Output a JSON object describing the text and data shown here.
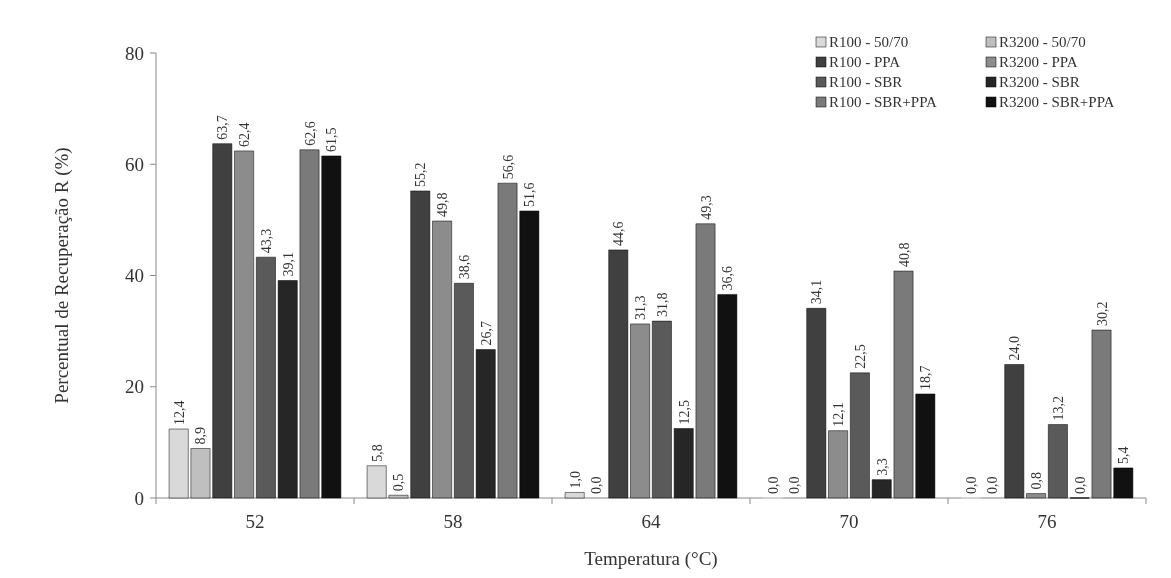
{
  "chart_data": {
    "type": "bar",
    "xlabel": "Temperatura (°C)",
    "ylabel": "Percentual de Recuperação R (%)",
    "categories": [
      "52",
      "58",
      "64",
      "70",
      "76"
    ],
    "ylim": [
      0,
      80
    ],
    "yticks": [
      0,
      20,
      40,
      60,
      80
    ],
    "grid": false,
    "legend": "top right",
    "series": [
      {
        "name": "R100 - 50/70",
        "color": "#d9d9d9",
        "values": [
          12.4,
          5.8,
          1.0,
          0.0,
          0.0
        ],
        "value_labels": [
          "12,4",
          "5,8",
          "1,0",
          "0,0",
          "0,0"
        ]
      },
      {
        "name": "R3200 - 50/70",
        "color": "#bfbfbf",
        "values": [
          8.9,
          0.5,
          0.0,
          0.0,
          0.0
        ],
        "value_labels": [
          "8,9",
          "0,5",
          "0,0",
          "0,0",
          "0,0"
        ]
      },
      {
        "name": "R100 - PPA",
        "color": "#404040",
        "values": [
          63.7,
          55.2,
          44.6,
          34.1,
          24.0
        ],
        "value_labels": [
          "63,7",
          "55,2",
          "44,6",
          "34,1",
          "24,0"
        ]
      },
      {
        "name": "R3200 - PPA",
        "color": "#8c8c8c",
        "values": [
          62.4,
          49.8,
          31.3,
          12.1,
          0.8
        ],
        "value_labels": [
          "62,4",
          "49,8",
          "31,3",
          "12,1",
          "0,8"
        ]
      },
      {
        "name": "R100 - SBR",
        "color": "#5a5a5a",
        "values": [
          43.3,
          38.6,
          31.8,
          22.5,
          13.2
        ],
        "value_labels": [
          "43,3",
          "38,6",
          "31,8",
          "22,5",
          "13,2"
        ]
      },
      {
        "name": "R3200 - SBR",
        "color": "#262626",
        "values": [
          39.1,
          26.7,
          12.5,
          3.3,
          0.0
        ],
        "value_labels": [
          "39,1",
          "26,7",
          "12,5",
          "3,3",
          "0,0"
        ]
      },
      {
        "name": "R100 - SBR+PPA",
        "color": "#7a7a7a",
        "values": [
          62.6,
          56.6,
          49.3,
          40.8,
          30.2
        ],
        "value_labels": [
          "62,6",
          "56,6",
          "49,3",
          "40,8",
          "30,2"
        ]
      },
      {
        "name": "R3200 - SBR+PPA",
        "color": "#111111",
        "values": [
          61.5,
          51.6,
          36.6,
          18.7,
          5.4
        ],
        "value_labels": [
          "61,5",
          "51,6",
          "36,6",
          "18,7",
          "5,4"
        ]
      }
    ]
  }
}
